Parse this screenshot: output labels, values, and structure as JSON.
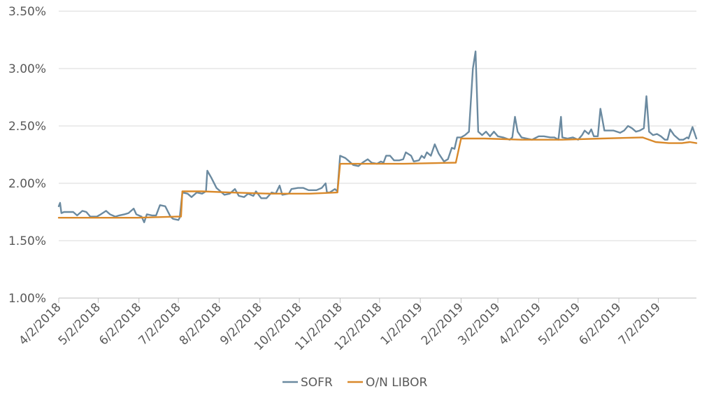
{
  "chart_data": {
    "type": "line",
    "title": "",
    "xlabel": "",
    "ylabel": "",
    "x_range": [
      "2018-04-02",
      "2019-07-31"
    ],
    "ylim": [
      1.0,
      3.5
    ],
    "y_ticks": [
      {
        "value": 1.0,
        "label": "1.00%"
      },
      {
        "value": 1.5,
        "label": "1.50%"
      },
      {
        "value": 2.0,
        "label": "2.00%"
      },
      {
        "value": 2.5,
        "label": "2.50%"
      },
      {
        "value": 3.0,
        "label": "3.00%"
      },
      {
        "value": 3.5,
        "label": "3.50%"
      }
    ],
    "x_ticks": [
      {
        "date": "2018-04-02",
        "label": "4/2/2018"
      },
      {
        "date": "2018-05-02",
        "label": "5/2/2018"
      },
      {
        "date": "2018-06-02",
        "label": "6/2/2018"
      },
      {
        "date": "2018-07-02",
        "label": "7/2/2018"
      },
      {
        "date": "2018-08-02",
        "label": "8/2/2018"
      },
      {
        "date": "2018-09-02",
        "label": "9/2/2018"
      },
      {
        "date": "2018-10-02",
        "label": "10/2/2018"
      },
      {
        "date": "2018-11-02",
        "label": "11/2/2018"
      },
      {
        "date": "2018-12-02",
        "label": "12/2/2018"
      },
      {
        "date": "2019-01-02",
        "label": "1/2/2019"
      },
      {
        "date": "2019-02-02",
        "label": "2/2/2019"
      },
      {
        "date": "2019-03-02",
        "label": "3/2/2019"
      },
      {
        "date": "2019-04-02",
        "label": "4/2/2019"
      },
      {
        "date": "2019-05-02",
        "label": "5/2/2019"
      },
      {
        "date": "2019-06-02",
        "label": "6/2/2019"
      },
      {
        "date": "2019-07-02",
        "label": "7/2/2019"
      }
    ],
    "grid": true,
    "legend_position": "bottom-center",
    "series": [
      {
        "name": "SOFR",
        "color": "#6b8aa0",
        "points": [
          [
            "2018-04-02",
            1.8
          ],
          [
            "2018-04-03",
            1.83
          ],
          [
            "2018-04-04",
            1.74
          ],
          [
            "2018-04-06",
            1.75
          ],
          [
            "2018-04-10",
            1.75
          ],
          [
            "2018-04-13",
            1.75
          ],
          [
            "2018-04-16",
            1.72
          ],
          [
            "2018-04-20",
            1.76
          ],
          [
            "2018-04-23",
            1.75
          ],
          [
            "2018-04-26",
            1.71
          ],
          [
            "2018-05-01",
            1.71
          ],
          [
            "2018-05-04",
            1.73
          ],
          [
            "2018-05-08",
            1.76
          ],
          [
            "2018-05-11",
            1.73
          ],
          [
            "2018-05-15",
            1.71
          ],
          [
            "2018-05-18",
            1.72
          ],
          [
            "2018-05-22",
            1.73
          ],
          [
            "2018-05-25",
            1.74
          ],
          [
            "2018-05-29",
            1.78
          ],
          [
            "2018-05-31",
            1.73
          ],
          [
            "2018-06-04",
            1.71
          ],
          [
            "2018-06-06",
            1.66
          ],
          [
            "2018-06-08",
            1.73
          ],
          [
            "2018-06-12",
            1.72
          ],
          [
            "2018-06-15",
            1.72
          ],
          [
            "2018-06-18",
            1.81
          ],
          [
            "2018-06-22",
            1.8
          ],
          [
            "2018-06-26",
            1.71
          ],
          [
            "2018-06-28",
            1.69
          ],
          [
            "2018-07-02",
            1.68
          ],
          [
            "2018-07-03",
            1.7
          ],
          [
            "2018-07-05",
            1.92
          ],
          [
            "2018-07-09",
            1.91
          ],
          [
            "2018-07-12",
            1.88
          ],
          [
            "2018-07-16",
            1.92
          ],
          [
            "2018-07-20",
            1.91
          ],
          [
            "2018-07-23",
            1.93
          ],
          [
            "2018-07-24",
            2.11
          ],
          [
            "2018-07-27",
            2.05
          ],
          [
            "2018-07-31",
            1.96
          ],
          [
            "2018-08-06",
            1.9
          ],
          [
            "2018-08-10",
            1.91
          ],
          [
            "2018-08-14",
            1.95
          ],
          [
            "2018-08-17",
            1.89
          ],
          [
            "2018-08-21",
            1.88
          ],
          [
            "2018-08-24",
            1.91
          ],
          [
            "2018-08-28",
            1.89
          ],
          [
            "2018-08-30",
            1.93
          ],
          [
            "2018-09-03",
            1.87
          ],
          [
            "2018-09-07",
            1.87
          ],
          [
            "2018-09-11",
            1.92
          ],
          [
            "2018-09-14",
            1.91
          ],
          [
            "2018-09-17",
            1.98
          ],
          [
            "2018-09-19",
            1.9
          ],
          [
            "2018-09-24",
            1.91
          ],
          [
            "2018-09-26",
            1.95
          ],
          [
            "2018-10-01",
            1.96
          ],
          [
            "2018-10-05",
            1.96
          ],
          [
            "2018-10-09",
            1.94
          ],
          [
            "2018-10-15",
            1.94
          ],
          [
            "2018-10-19",
            1.96
          ],
          [
            "2018-10-22",
            2.0
          ],
          [
            "2018-10-23",
            1.92
          ],
          [
            "2018-10-25",
            1.92
          ],
          [
            "2018-10-29",
            1.95
          ],
          [
            "2018-10-31",
            1.93
          ],
          [
            "2018-11-02",
            2.24
          ],
          [
            "2018-11-06",
            2.22
          ],
          [
            "2018-11-09",
            2.19
          ],
          [
            "2018-11-12",
            2.16
          ],
          [
            "2018-11-16",
            2.15
          ],
          [
            "2018-11-19",
            2.18
          ],
          [
            "2018-11-23",
            2.21
          ],
          [
            "2018-11-26",
            2.18
          ],
          [
            "2018-11-30",
            2.17
          ],
          [
            "2018-12-03",
            2.19
          ],
          [
            "2018-12-05",
            2.18
          ],
          [
            "2018-12-07",
            2.24
          ],
          [
            "2018-12-10",
            2.24
          ],
          [
            "2018-12-13",
            2.2
          ],
          [
            "2018-12-17",
            2.2
          ],
          [
            "2018-12-20",
            2.21
          ],
          [
            "2018-12-22",
            2.27
          ],
          [
            "2018-12-26",
            2.24
          ],
          [
            "2018-12-28",
            2.19
          ],
          [
            "2019-01-01",
            2.2
          ],
          [
            "2019-01-03",
            2.24
          ],
          [
            "2019-01-05",
            2.22
          ],
          [
            "2019-01-07",
            2.27
          ],
          [
            "2019-01-10",
            2.24
          ],
          [
            "2019-01-13",
            2.34
          ],
          [
            "2019-01-16",
            2.26
          ],
          [
            "2019-01-20",
            2.19
          ],
          [
            "2019-01-23",
            2.21
          ],
          [
            "2019-01-26",
            2.31
          ],
          [
            "2019-01-28",
            2.3
          ],
          [
            "2019-01-30",
            2.4
          ],
          [
            "2019-02-02",
            2.4
          ],
          [
            "2019-02-05",
            2.42
          ],
          [
            "2019-02-08",
            2.45
          ],
          [
            "2019-02-11",
            3.0
          ],
          [
            "2019-02-13",
            3.15
          ],
          [
            "2019-02-15",
            2.45
          ],
          [
            "2019-02-18",
            2.42
          ],
          [
            "2019-02-21",
            2.45
          ],
          [
            "2019-02-24",
            2.41
          ],
          [
            "2019-02-27",
            2.45
          ],
          [
            "2019-03-02",
            2.41
          ],
          [
            "2019-03-06",
            2.4
          ],
          [
            "2019-03-11",
            2.38
          ],
          [
            "2019-03-13",
            2.4
          ],
          [
            "2019-03-15",
            2.58
          ],
          [
            "2019-03-17",
            2.45
          ],
          [
            "2019-03-20",
            2.4
          ],
          [
            "2019-03-24",
            2.39
          ],
          [
            "2019-03-28",
            2.38
          ],
          [
            "2019-04-02",
            2.41
          ],
          [
            "2019-04-06",
            2.41
          ],
          [
            "2019-04-11",
            2.4
          ],
          [
            "2019-04-14",
            2.4
          ],
          [
            "2019-04-17",
            2.38
          ],
          [
            "2019-04-19",
            2.58
          ],
          [
            "2019-04-20",
            2.4
          ],
          [
            "2019-04-24",
            2.39
          ],
          [
            "2019-04-28",
            2.4
          ],
          [
            "2019-05-02",
            2.38
          ],
          [
            "2019-05-05",
            2.42
          ],
          [
            "2019-05-07",
            2.46
          ],
          [
            "2019-05-10",
            2.43
          ],
          [
            "2019-05-12",
            2.47
          ],
          [
            "2019-05-14",
            2.41
          ],
          [
            "2019-05-17",
            2.41
          ],
          [
            "2019-05-19",
            2.65
          ],
          [
            "2019-05-22",
            2.46
          ],
          [
            "2019-05-25",
            2.46
          ],
          [
            "2019-05-29",
            2.46
          ],
          [
            "2019-06-03",
            2.44
          ],
          [
            "2019-06-06",
            2.46
          ],
          [
            "2019-06-09",
            2.5
          ],
          [
            "2019-06-12",
            2.48
          ],
          [
            "2019-06-15",
            2.45
          ],
          [
            "2019-06-18",
            2.46
          ],
          [
            "2019-06-21",
            2.48
          ],
          [
            "2019-06-23",
            2.76
          ],
          [
            "2019-06-25",
            2.45
          ],
          [
            "2019-06-28",
            2.42
          ],
          [
            "2019-07-01",
            2.43
          ],
          [
            "2019-07-04",
            2.41
          ],
          [
            "2019-07-07",
            2.38
          ],
          [
            "2019-07-09",
            2.38
          ],
          [
            "2019-07-11",
            2.47
          ],
          [
            "2019-07-14",
            2.42
          ],
          [
            "2019-07-18",
            2.38
          ],
          [
            "2019-07-21",
            2.38
          ],
          [
            "2019-07-24",
            2.4
          ],
          [
            "2019-07-25",
            2.39
          ],
          [
            "2019-07-28",
            2.49
          ],
          [
            "2019-07-31",
            2.39
          ]
        ]
      },
      {
        "name": "O/N LIBOR",
        "color": "#d9892a",
        "points": [
          [
            "2018-04-02",
            1.7
          ],
          [
            "2018-04-10",
            1.7
          ],
          [
            "2018-05-01",
            1.7
          ],
          [
            "2018-06-01",
            1.7
          ],
          [
            "2018-07-01",
            1.71
          ],
          [
            "2018-07-04",
            1.71
          ],
          [
            "2018-07-05",
            1.93
          ],
          [
            "2018-07-20",
            1.93
          ],
          [
            "2018-08-10",
            1.92
          ],
          [
            "2018-09-10",
            1.91
          ],
          [
            "2018-10-10",
            1.91
          ],
          [
            "2018-10-31",
            1.92
          ],
          [
            "2018-11-02",
            2.17
          ],
          [
            "2018-11-20",
            2.17
          ],
          [
            "2018-12-20",
            2.17
          ],
          [
            "2019-01-29",
            2.18
          ],
          [
            "2019-02-02",
            2.39
          ],
          [
            "2019-02-20",
            2.39
          ],
          [
            "2019-03-20",
            2.38
          ],
          [
            "2019-04-20",
            2.38
          ],
          [
            "2019-05-20",
            2.39
          ],
          [
            "2019-06-20",
            2.4
          ],
          [
            "2019-06-30",
            2.36
          ],
          [
            "2019-07-10",
            2.35
          ],
          [
            "2019-07-20",
            2.35
          ],
          [
            "2019-07-26",
            2.36
          ],
          [
            "2019-07-31",
            2.35
          ]
        ]
      }
    ]
  }
}
